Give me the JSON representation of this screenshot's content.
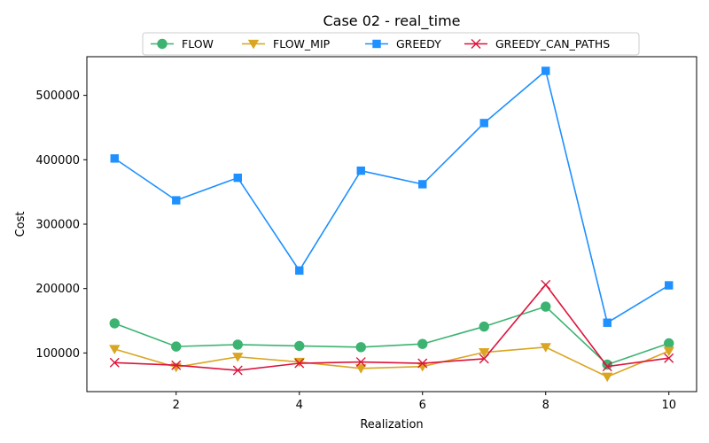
{
  "chart_data": {
    "type": "line",
    "title": "Case 02 - real_time",
    "xlabel": "Realization",
    "ylabel": "Cost",
    "x": [
      1,
      2,
      3,
      4,
      5,
      6,
      7,
      8,
      9,
      10
    ],
    "xlim": [
      0.55,
      10.45
    ],
    "ylim": [
      40000,
      560000
    ],
    "xticks": [
      2,
      4,
      6,
      8,
      10
    ],
    "xtick_labels": [
      "2",
      "4",
      "6",
      "8",
      "10"
    ],
    "yticks": [
      100000,
      200000,
      300000,
      400000,
      500000
    ],
    "ytick_labels": [
      "100000",
      "200000",
      "300000",
      "400000",
      "500000"
    ],
    "grid": false,
    "legend_position": "top-center",
    "series": [
      {
        "name": "FLOW",
        "color": "#3cb371",
        "marker": "circle",
        "values": [
          146000,
          110000,
          113000,
          111000,
          109000,
          114000,
          141000,
          172000,
          82000,
          115000
        ]
      },
      {
        "name": "FLOW_MIP",
        "color": "#daa520",
        "marker": "triangle-down",
        "values": [
          106000,
          78000,
          94000,
          86000,
          76000,
          79000,
          101000,
          109000,
          63000,
          103000
        ]
      },
      {
        "name": "GREEDY",
        "color": "#1e90ff",
        "marker": "square",
        "values": [
          402000,
          337000,
          372000,
          228000,
          383000,
          362000,
          457000,
          538000,
          147000,
          205000
        ]
      },
      {
        "name": "GREEDY_CAN_PATHS",
        "color": "#dc143c",
        "marker": "x",
        "values": [
          85000,
          81000,
          73000,
          84000,
          86000,
          84000,
          91000,
          206000,
          79000,
          92000
        ]
      }
    ]
  }
}
